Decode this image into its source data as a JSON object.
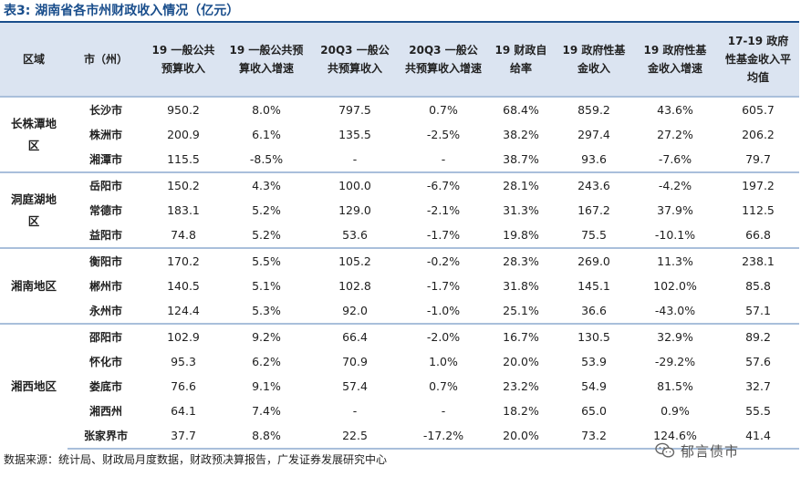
{
  "title": "表3: 湖南省各市州财政收入情况（亿元）",
  "headers": [
    "区域",
    "市（州）",
    "19 一般公共预算收入",
    "19 一般公共预算收入增速",
    "20Q3 一般公共预算收入",
    "20Q3 一般公共预算收入增速",
    "19 财政自给率",
    "19 政府性基金收入",
    "19 政府性基金收入增速",
    "17-19 政府性基金收入平均值"
  ],
  "groups": [
    {
      "region": "长株潭地区",
      "rows": [
        {
          "city": "长沙市",
          "v": [
            "950.2",
            "8.0%",
            "797.5",
            "0.7%",
            "68.4%",
            "859.2",
            "43.6%",
            "605.7"
          ]
        },
        {
          "city": "株洲市",
          "v": [
            "200.9",
            "6.1%",
            "135.5",
            "-2.5%",
            "38.2%",
            "297.4",
            "27.2%",
            "206.2"
          ]
        },
        {
          "city": "湘潭市",
          "v": [
            "115.5",
            "-8.5%",
            "-",
            "-",
            "38.7%",
            "93.6",
            "-7.6%",
            "79.7"
          ]
        }
      ]
    },
    {
      "region": "洞庭湖地区",
      "rows": [
        {
          "city": "岳阳市",
          "v": [
            "150.2",
            "4.3%",
            "100.0",
            "-6.7%",
            "28.1%",
            "243.6",
            "-4.2%",
            "197.2"
          ]
        },
        {
          "city": "常德市",
          "v": [
            "183.1",
            "5.2%",
            "129.0",
            "-2.1%",
            "31.3%",
            "167.2",
            "37.9%",
            "112.5"
          ]
        },
        {
          "city": "益阳市",
          "v": [
            "74.8",
            "5.2%",
            "53.6",
            "-1.7%",
            "19.8%",
            "75.5",
            "-10.1%",
            "66.8"
          ]
        }
      ]
    },
    {
      "region": "湘南地区",
      "rows": [
        {
          "city": "衡阳市",
          "v": [
            "170.2",
            "5.5%",
            "105.2",
            "-0.2%",
            "28.3%",
            "269.0",
            "11.3%",
            "238.1"
          ]
        },
        {
          "city": "郴州市",
          "v": [
            "140.5",
            "5.1%",
            "102.8",
            "-1.7%",
            "31.8%",
            "145.1",
            "102.0%",
            "85.8"
          ]
        },
        {
          "city": "永州市",
          "v": [
            "124.4",
            "5.3%",
            "92.0",
            "-1.0%",
            "25.1%",
            "36.6",
            "-43.0%",
            "57.1"
          ]
        }
      ]
    },
    {
      "region": "湘西地区",
      "rows": [
        {
          "city": "邵阳市",
          "v": [
            "102.9",
            "9.2%",
            "66.4",
            "-2.0%",
            "16.7%",
            "130.5",
            "32.9%",
            "89.2"
          ]
        },
        {
          "city": "怀化市",
          "v": [
            "95.3",
            "6.2%",
            "70.9",
            "1.0%",
            "20.0%",
            "53.9",
            "-29.2%",
            "57.6"
          ]
        },
        {
          "city": "娄底市",
          "v": [
            "76.6",
            "9.1%",
            "57.4",
            "0.7%",
            "23.2%",
            "54.9",
            "81.5%",
            "32.7"
          ]
        },
        {
          "city": "湘西州",
          "v": [
            "64.1",
            "7.4%",
            "-",
            "-",
            "18.2%",
            "65.0",
            "0.9%",
            "55.5"
          ]
        },
        {
          "city": "张家界市",
          "v": [
            "37.7",
            "8.8%",
            "22.5",
            "-17.2%",
            "20.0%",
            "73.2",
            "124.6%",
            "41.4"
          ]
        }
      ]
    }
  ],
  "source": "数据来源：统计局、财政局月度数据，财政预决算报告，广发证券发展研究中心",
  "watermark": "郁言债市",
  "icons": {
    "watermark": "wechat-icon"
  },
  "colors": {
    "title": "#1a4e8c",
    "header_bg": "#dbe4f1",
    "group_rule": "#a9bfdb"
  }
}
